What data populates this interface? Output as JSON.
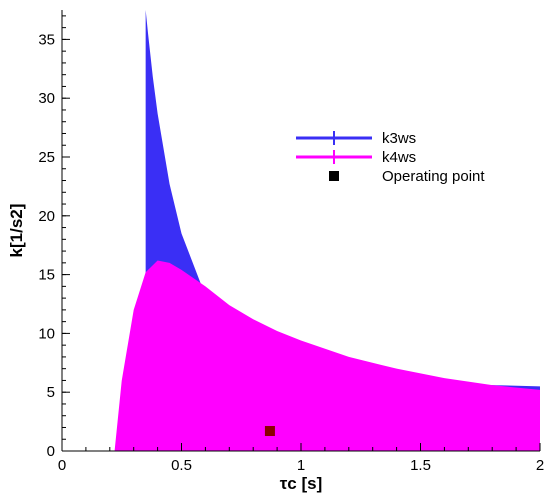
{
  "chart_data": {
    "type": "area",
    "xlabel": "τc [s]",
    "ylabel": "k[1/s2]",
    "xlim": [
      0,
      2
    ],
    "ylim": [
      0,
      37.5
    ],
    "x_ticks": [
      0,
      0.5,
      1,
      1.5,
      2
    ],
    "x_tick_labels": [
      "0",
      "0.5",
      "1",
      "1.5",
      "2"
    ],
    "y_ticks": [
      0,
      5,
      10,
      15,
      20,
      25,
      30,
      35
    ],
    "y_tick_labels": [
      "0",
      "5",
      "10",
      "15",
      "20",
      "25",
      "30",
      "35"
    ],
    "grid": false,
    "legend_position": "upper-right",
    "series": [
      {
        "name": "k3ws",
        "color": "#3a2ff5",
        "x": [
          0.35,
          0.36,
          0.38,
          0.4,
          0.45,
          0.5,
          0.6,
          0.7,
          0.8,
          0.9,
          1.0,
          1.2,
          1.4,
          1.6,
          1.8,
          2.0
        ],
        "y": [
          37.5,
          35.5,
          31.8,
          28.7,
          22.7,
          18.5,
          13.2,
          10.2,
          8.3,
          7.4,
          6.9,
          6.4,
          6.0,
          5.8,
          5.6,
          5.5
        ]
      },
      {
        "name": "k4ws",
        "color": "#ff00ff",
        "x": [
          0.22,
          0.25,
          0.3,
          0.35,
          0.4,
          0.45,
          0.5,
          0.6,
          0.7,
          0.8,
          0.9,
          1.0,
          1.2,
          1.4,
          1.6,
          1.8,
          2.0
        ],
        "y": [
          0,
          6.0,
          12.0,
          15.2,
          16.2,
          16.0,
          15.4,
          14.0,
          12.4,
          11.2,
          10.2,
          9.4,
          8.0,
          7.0,
          6.2,
          5.6,
          5.2
        ]
      }
    ],
    "operating_point": {
      "name": "Operating point",
      "x": 0.87,
      "y": 1.7,
      "color": "#8b0000"
    }
  }
}
